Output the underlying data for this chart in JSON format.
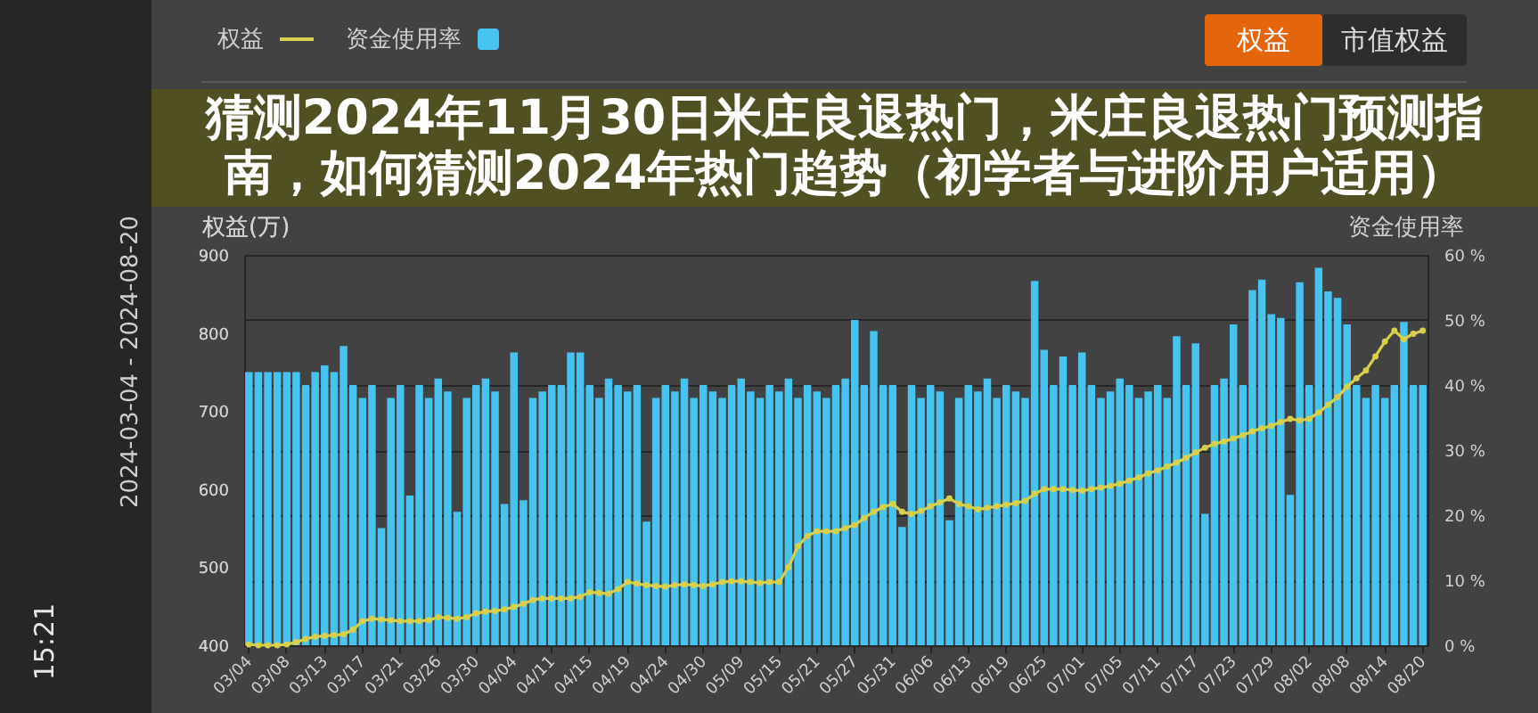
{
  "chart_data": {
    "type": "bar",
    "title": "猜测2024年11月30日米庄良退热门，米庄良退热门预测指南，如何猜测2024年热门趋势（初学者与进阶用户适用）",
    "ylabel": "权益(万)",
    "y2label": "资金使用率",
    "annotations": [
      "权益",
      "市值权益",
      "2024-03-04 - 2024-08-20",
      "15:21"
    ],
    "categories": [
      "03/04",
      null,
      null,
      null,
      "03/08",
      null,
      null,
      null,
      "03/13",
      null,
      null,
      null,
      "03/17",
      null,
      null,
      null,
      "03/21",
      null,
      null,
      null,
      "03/26",
      null,
      null,
      null,
      "03/30",
      null,
      null,
      null,
      "04/04",
      null,
      null,
      null,
      "04/11",
      null,
      null,
      null,
      "04/15",
      null,
      null,
      null,
      "04/19",
      null,
      null,
      null,
      "04/24",
      null,
      null,
      null,
      "04/30",
      null,
      null,
      null,
      "05/09",
      null,
      null,
      null,
      "05/15",
      null,
      null,
      null,
      "05/21",
      null,
      null,
      null,
      "05/27",
      null,
      null,
      null,
      "05/31",
      null,
      null,
      null,
      "06/06",
      null,
      null,
      null,
      "06/13",
      null,
      null,
      null,
      "06/19",
      null,
      null,
      null,
      "06/25",
      null,
      null,
      null,
      "07/01",
      null,
      null,
      null,
      "07/05",
      null,
      null,
      null,
      "07/11",
      null,
      null,
      null,
      "07/17",
      null,
      null,
      null,
      "07/23",
      null,
      null,
      null,
      "07/29",
      null,
      null,
      null,
      "08/02",
      null,
      null,
      null,
      "08/08",
      null,
      null,
      null,
      "08/14",
      null,
      null,
      null,
      "08/20"
    ],
    "series": [
      {
        "name": "权益",
        "type": "line",
        "color": "#d8d04a",
        "values": [
          401,
          400,
          400,
          400,
          401,
          404,
          408,
          411,
          412,
          413,
          414,
          420,
          431,
          434,
          433,
          432,
          431,
          431,
          431,
          432,
          436,
          435,
          434,
          436,
          441,
          443,
          444,
          446,
          449,
          453,
          458,
          460,
          460,
          460,
          460,
          462,
          468,
          467,
          466,
          472,
          481,
          479,
          477,
          476,
          475,
          477,
          478,
          477,
          476,
          478,
          481,
          482,
          482,
          481,
          480,
          481,
          481,
          500,
          527,
          540,
          546,
          546,
          546,
          550,
          554,
          563,
          571,
          577,
          581,
          571,
          568,
          572,
          578,
          583,
          588,
          581,
          578,
          574,
          576,
          578,
          580,
          582,
          585,
          594,
          600,
          600,
          600,
          599,
          598,
          600,
          602,
          604,
          607,
          611,
          615,
          620,
          624,
          629,
          634,
          640,
          647,
          653,
          658,
          661,
          665,
          669,
          674,
          678,
          681,
          686,
          690,
          688,
          690,
          698,
          708,
          718,
          731,
          742,
          752,
          770,
          789,
          803,
          792,
          799,
          803
        ]
      },
      {
        "name": "资金使用率",
        "axis": "y2",
        "color": "#47c3f0",
        "values": [
          42,
          42,
          42,
          42,
          42,
          42,
          40,
          42,
          43,
          42,
          46,
          40,
          38,
          40,
          18,
          38,
          40,
          23,
          40,
          38,
          41,
          39,
          20.5,
          38,
          40,
          41,
          39,
          21.7,
          45,
          22.3,
          38,
          39,
          40,
          40,
          45,
          45,
          40,
          38,
          41,
          40,
          39,
          40,
          19,
          38,
          40,
          39,
          41,
          38,
          40,
          39,
          38,
          40,
          41,
          39,
          38,
          40,
          39,
          41,
          38,
          40,
          39,
          38,
          40,
          41,
          50,
          40,
          48.3,
          40,
          40,
          18.2,
          40,
          38,
          40,
          39,
          19.2,
          38,
          40,
          39,
          41,
          38,
          40,
          39,
          38,
          56,
          45.4,
          40,
          44.4,
          40,
          45,
          40,
          38,
          39,
          41,
          40,
          38,
          39,
          40,
          38,
          47.5,
          40,
          46.4,
          20.2,
          40,
          41,
          49.3,
          40,
          54.6,
          56.2,
          50.9,
          50.3,
          23.1,
          55.8,
          40,
          58,
          54.4,
          53.4,
          49.3,
          40,
          38,
          40,
          38,
          40,
          49.7,
          40,
          40
        ]
      }
    ],
    "ylim": [
      400,
      900
    ],
    "yticks": [
      400,
      500,
      600,
      700,
      800,
      900
    ],
    "y2lim": [
      0,
      60
    ],
    "y2ticks": [
      {
        "value": 0,
        "label": "0 %"
      },
      {
        "value": 10,
        "label": "10 %"
      },
      {
        "value": 20,
        "label": "20 %"
      },
      {
        "value": 30,
        "label": "30 %"
      },
      {
        "value": 40,
        "label": "40 %"
      },
      {
        "value": 50,
        "label": "50 %"
      },
      {
        "value": 60,
        "label": "60 %"
      }
    ],
    "grid": true,
    "legend": "top left",
    "marker": "circle"
  }
}
